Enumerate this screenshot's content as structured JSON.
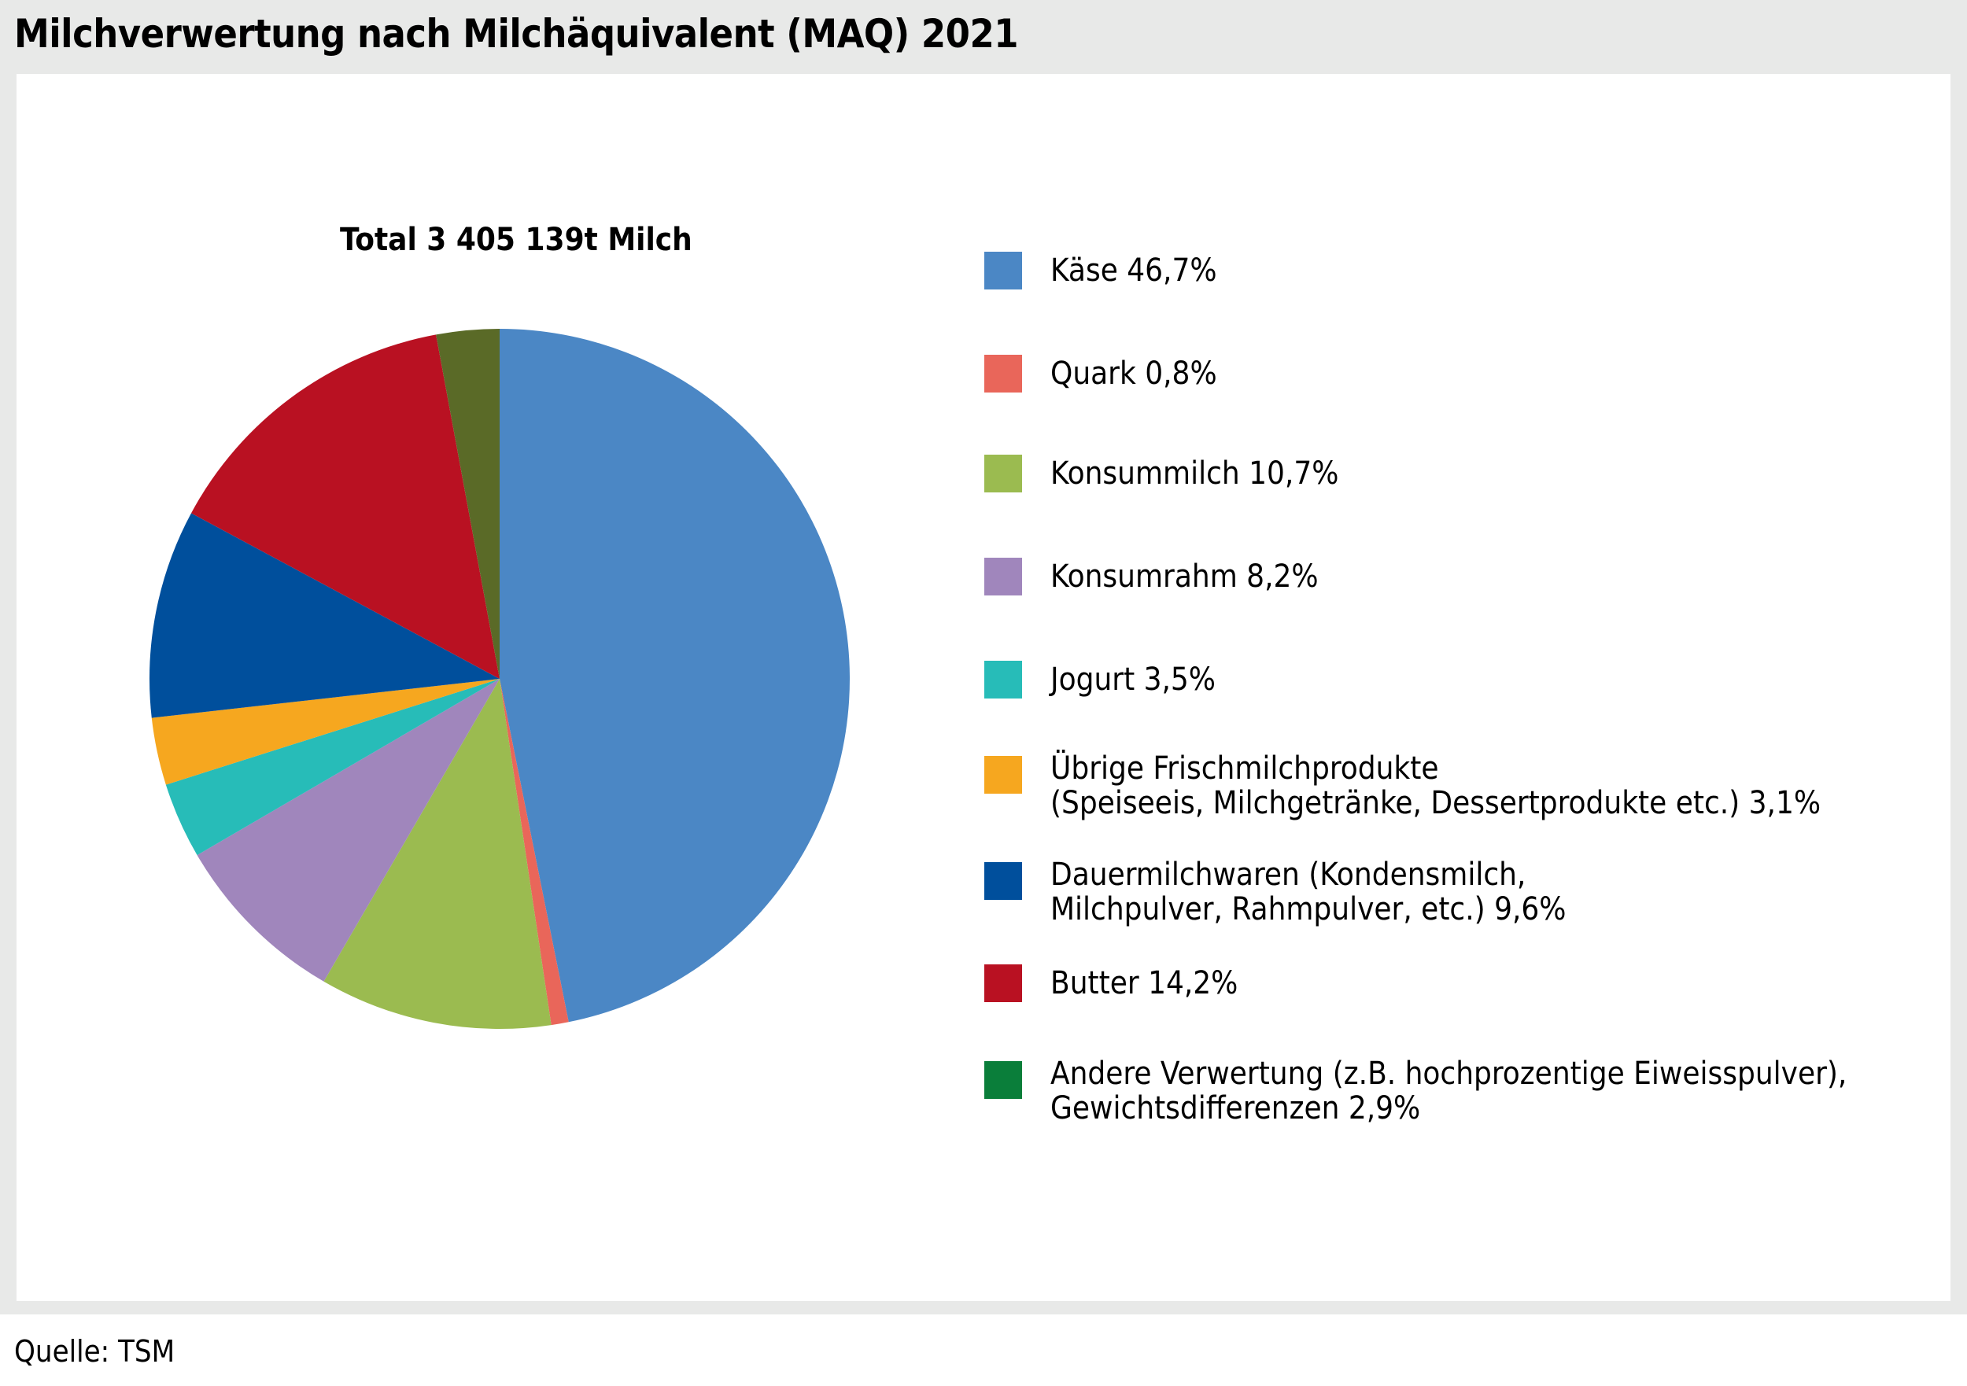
{
  "title": "Milchverwertung nach Milchäquivalent (MAQ) 2021",
  "source": "Quelle: TSM",
  "chart_data": {
    "type": "pie",
    "title": "Total 3 405 139t Milch",
    "total_t": 3405139,
    "legend_position": "right",
    "slices": [
      {
        "label": "Käse 46,7%",
        "value": 46.7,
        "color": "#4b87c5"
      },
      {
        "label": "Quark 0,8%",
        "value": 0.8,
        "color": "#e9665a"
      },
      {
        "label": "Konsummilch 10,7%",
        "value": 10.7,
        "color": "#9bbb50"
      },
      {
        "label": "Konsumrahm 8,2%",
        "value": 8.2,
        "color": "#a086bc"
      },
      {
        "label": "Jogurt 3,5%",
        "value": 3.5,
        "color": "#27bcb8"
      },
      {
        "label": "Übrige Frischmilchprodukte\n(Speiseeis, Milchgetränke, Dessertprodukte etc.) 3,1%",
        "value": 3.1,
        "color": "#f6a71f"
      },
      {
        "label": "Dauermilchwaren (Kondensmilch,\nMilchpulver, Rahmpulver, etc.) 9,6%",
        "value": 9.6,
        "color": "#004f9c"
      },
      {
        "label": "Butter 14,2%",
        "value": 14.2,
        "color": "#b91122"
      },
      {
        "label": "Andere Verwertung (z.B. hochprozentige Eiweisspulver),\nGewichtsdifferenzen 2,9%",
        "value": 2.9,
        "color": "#5a6a27",
        "legend_color": "#0a7e3a"
      }
    ]
  }
}
